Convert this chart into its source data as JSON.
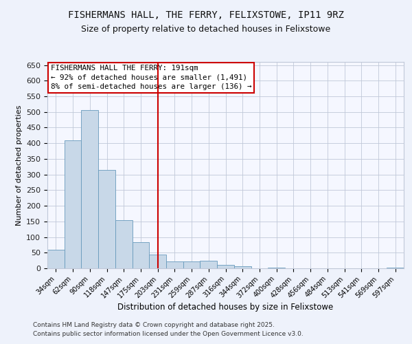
{
  "title1": "FISHERMANS HALL, THE FERRY, FELIXSTOWE, IP11 9RZ",
  "title2": "Size of property relative to detached houses in Felixstowe",
  "xlabel": "Distribution of detached houses by size in Felixstowe",
  "ylabel": "Number of detached properties",
  "categories": [
    "34sqm",
    "62sqm",
    "90sqm",
    "118sqm",
    "147sqm",
    "175sqm",
    "203sqm",
    "231sqm",
    "259sqm",
    "287sqm",
    "316sqm",
    "344sqm",
    "372sqm",
    "400sqm",
    "428sqm",
    "456sqm",
    "484sqm",
    "513sqm",
    "541sqm",
    "569sqm",
    "597sqm"
  ],
  "values": [
    60,
    410,
    505,
    315,
    155,
    83,
    45,
    23,
    23,
    25,
    10,
    6,
    0,
    3,
    0,
    0,
    0,
    0,
    0,
    0,
    2
  ],
  "bar_color": "#c8d8e8",
  "bar_edge_color": "#6699bb",
  "red_line_x": 6.0,
  "annotation_title": "FISHERMANS HALL THE FERRY: 191sqm",
  "annotation_line1": "← 92% of detached houses are smaller (1,491)",
  "annotation_line2": "8% of semi-detached houses are larger (136) →",
  "ylim": [
    0,
    660
  ],
  "yticks": [
    0,
    50,
    100,
    150,
    200,
    250,
    300,
    350,
    400,
    450,
    500,
    550,
    600,
    650
  ],
  "footer1": "Contains HM Land Registry data © Crown copyright and database right 2025.",
  "footer2": "Contains public sector information licensed under the Open Government Licence v3.0.",
  "bg_color": "#eef2fb",
  "plot_bg_color": "#f5f7ff",
  "grid_color": "#c0c8d8"
}
